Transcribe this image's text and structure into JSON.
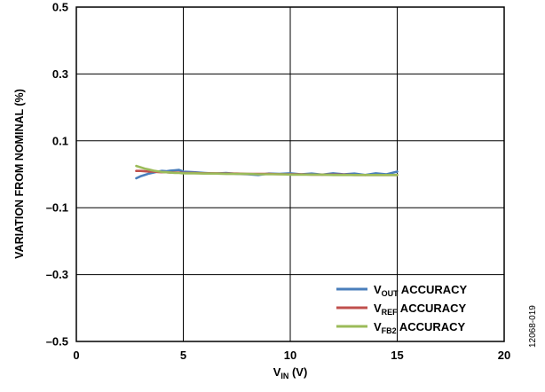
{
  "chart_data": {
    "type": "line",
    "title": "",
    "xlabel": {
      "main": "V",
      "sub": "IN",
      "rest": " (V)"
    },
    "ylabel": "VARIATION FROM NOMINAL (%)",
    "xlim": [
      0,
      20
    ],
    "ylim": [
      -0.5,
      0.5
    ],
    "xticks": [
      0,
      5,
      10,
      15,
      20
    ],
    "yticks": [
      -0.5,
      -0.3,
      -0.1,
      0.1,
      0.3,
      0.5
    ],
    "xtick_labels": [
      "0",
      "5",
      "10",
      "15",
      "20"
    ],
    "ytick_labels": [
      "–0.5",
      "–0.3",
      "–0.1",
      "0.1",
      "0.3",
      "0.5"
    ],
    "grid": true,
    "legend_position": "bottom-right",
    "x": [
      2.8,
      3.0,
      3.2,
      3.4,
      3.6,
      3.8,
      4.0,
      4.2,
      4.4,
      4.6,
      4.8,
      5.0,
      5.5,
      6.0,
      6.5,
      7.0,
      7.5,
      8.0,
      8.5,
      9.0,
      9.5,
      10.0,
      10.5,
      11.0,
      11.5,
      12.0,
      12.5,
      13.0,
      13.5,
      14.0,
      14.5,
      15.0
    ],
    "series": [
      {
        "name": {
          "main": "V",
          "sub": "OUT",
          "rest": " ACCURACY"
        },
        "color": "#4a7ebb",
        "values": [
          -0.012,
          -0.006,
          -0.002,
          0.002,
          0.005,
          0.008,
          0.01,
          0.009,
          0.011,
          0.012,
          0.013,
          0.008,
          0.006,
          0.004,
          0.002,
          0.004,
          0.001,
          0.0,
          -0.002,
          0.002,
          0.001,
          0.003,
          0.0,
          0.002,
          -0.001,
          0.003,
          0.0,
          0.002,
          -0.002,
          0.003,
          0.0,
          0.008
        ]
      },
      {
        "name": {
          "main": "V",
          "sub": "REF",
          "rest": " ACCURACY"
        },
        "color": "#c0504d",
        "values": [
          0.01,
          0.01,
          0.009,
          0.008,
          0.008,
          0.007,
          0.006,
          0.006,
          0.005,
          0.005,
          0.005,
          0.004,
          0.004,
          0.003,
          0.003,
          0.002,
          0.002,
          0.001,
          0.001,
          0.001,
          0.0,
          0.0,
          0.0,
          -0.001,
          -0.001,
          -0.001,
          -0.001,
          -0.002,
          -0.002,
          -0.002,
          -0.002,
          -0.002
        ]
      },
      {
        "name": {
          "main": "V",
          "sub": "FB2",
          "rest": " ACCURACY"
        },
        "color": "#9bbb59",
        "values": [
          0.025,
          0.021,
          0.017,
          0.014,
          0.011,
          0.009,
          0.007,
          0.006,
          0.005,
          0.004,
          0.004,
          0.003,
          0.003,
          0.002,
          0.002,
          0.001,
          0.001,
          0.001,
          0.0,
          0.0,
          0.0,
          -0.001,
          -0.001,
          -0.001,
          -0.001,
          -0.002,
          -0.002,
          -0.002,
          -0.002,
          -0.002,
          -0.002,
          -0.002
        ]
      }
    ]
  },
  "figure_id": "12068-019"
}
